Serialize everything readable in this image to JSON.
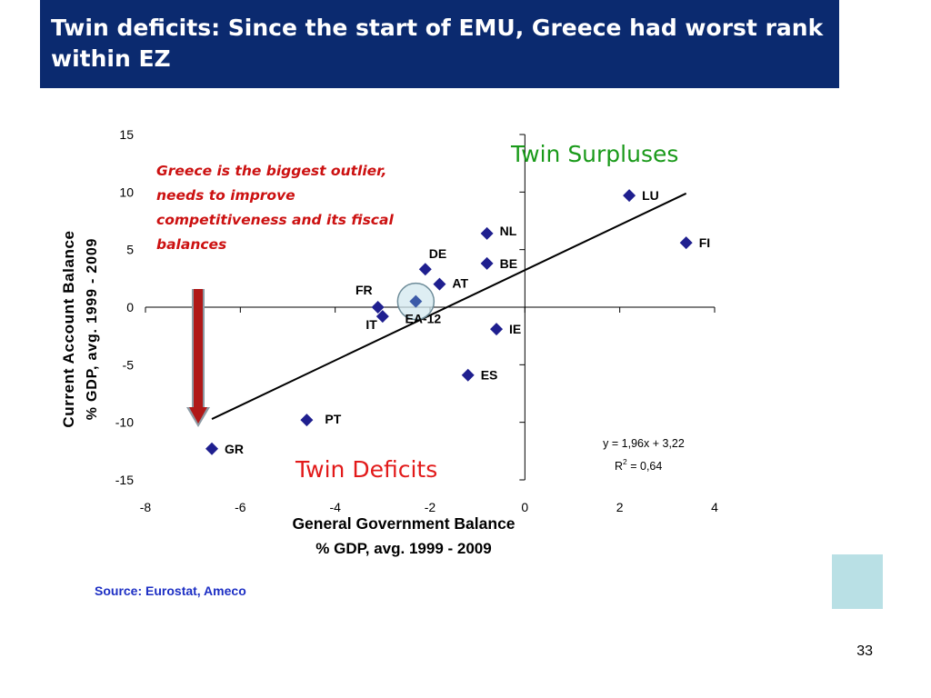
{
  "slide": {
    "title": "Twin deficits: Since the start of EMU, Greece had worst rank within EZ",
    "source": "Source: Eurostat, Ameco",
    "page_number": "33",
    "colors": {
      "header": "#0b2a6f",
      "marker": "#1f1f8f",
      "surplus": "#1a9a1a",
      "deficit": "#e21a1a",
      "callout": "#cc1111",
      "arrow": "#b01818",
      "source": "#1d2fc4"
    }
  },
  "chart_data": {
    "type": "scatter",
    "title": "",
    "xlabel": "General Government Balance",
    "xlabel2": "% GDP, avg. 1999 - 2009",
    "ylabel": "Current Account Balance",
    "ylabel2": "% GDP, avg. 1999 - 2009",
    "xlim": [
      -8,
      4
    ],
    "ylim": [
      -15,
      15
    ],
    "xticks": [
      -8,
      -6,
      -4,
      -2,
      0,
      2,
      4
    ],
    "yticks": [
      15,
      10,
      5,
      0,
      -5,
      -10,
      -15
    ],
    "points": [
      {
        "label": "LU",
        "x": 2.2,
        "y": 9.7
      },
      {
        "label": "FI",
        "x": 3.4,
        "y": 5.6
      },
      {
        "label": "NL",
        "x": -0.8,
        "y": 6.4
      },
      {
        "label": "BE",
        "x": -0.8,
        "y": 3.8
      },
      {
        "label": "DE",
        "x": -2.1,
        "y": 3.3
      },
      {
        "label": "AT",
        "x": -1.8,
        "y": 2.0
      },
      {
        "label": "FR",
        "x": -3.1,
        "y": 0.0
      },
      {
        "label": "IT",
        "x": -3.0,
        "y": -0.8
      },
      {
        "label": "EA-12",
        "x": -2.3,
        "y": 0.5
      },
      {
        "label": "IE",
        "x": -0.6,
        "y": -1.9
      },
      {
        "label": "ES",
        "x": -1.2,
        "y": -5.9
      },
      {
        "label": "PT",
        "x": -4.6,
        "y": -9.8
      },
      {
        "label": "GR",
        "x": -6.6,
        "y": -12.3
      }
    ],
    "trendline": {
      "slope": 1.96,
      "intercept": 3.22,
      "x_range": [
        -6.6,
        3.4
      ]
    },
    "equation": "y = 1,96x + 3,22",
    "r2_label": "R",
    "r2_exp": "2",
    "r2_value": " = 0,64",
    "annotations": {
      "surplus": "Twin Surpluses",
      "deficit": "Twin Deficits",
      "callout": [
        "Greece is the biggest outlier,",
        "needs to improve",
        "competitiveness and its fiscal",
        "balances"
      ]
    }
  }
}
